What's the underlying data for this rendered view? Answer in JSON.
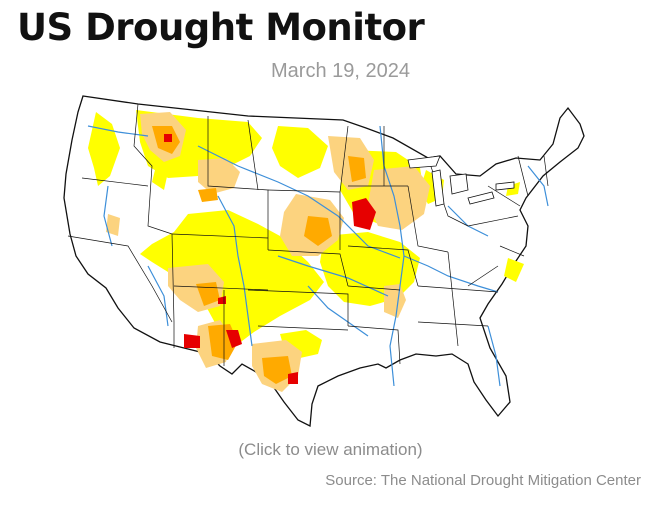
{
  "header": {
    "title": "US Drought Monitor",
    "date": "March 19, 2024"
  },
  "map": {
    "subject": "Contiguous United States drought conditions",
    "colors": {
      "land": "#ffffff",
      "border": "#111111",
      "rivers": "#3d8fd9",
      "abnormally_dry": "#ffff00",
      "moderate_drought": "#fcd37f",
      "severe_drought": "#ffaa00",
      "extreme_drought": "#e60000"
    }
  },
  "footer": {
    "animation_link": "(Click to view animation)",
    "source": "Source: The National Drought Mitigation Center"
  }
}
